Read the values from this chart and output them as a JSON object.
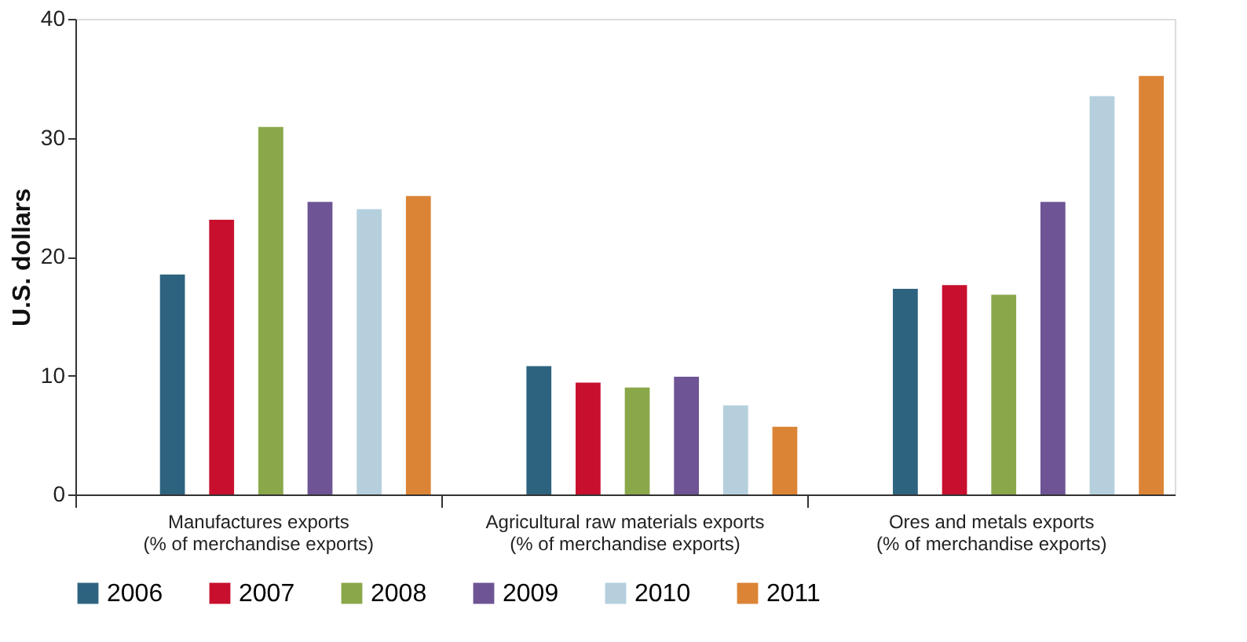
{
  "chart_data": {
    "type": "bar",
    "ylabel": "U.S. dollars",
    "categories": [
      "Manufactures exports\n(% of merchandise exports)",
      "Agricultural raw materials exports\n(% of merchandise exports)",
      "Ores and metals exports\n(% of merchandise exports)"
    ],
    "series": [
      {
        "name": "2006",
        "color": "#2e6380",
        "values": [
          18.5,
          10.8,
          17.3
        ]
      },
      {
        "name": "2007",
        "color": "#c8102e",
        "values": [
          23.1,
          9.4,
          17.6
        ]
      },
      {
        "name": "2008",
        "color": "#8aa84a",
        "values": [
          30.9,
          9.0,
          16.8
        ]
      },
      {
        "name": "2009",
        "color": "#6e5494",
        "values": [
          24.6,
          9.9,
          24.6
        ]
      },
      {
        "name": "2010",
        "color": "#b5cfdd",
        "values": [
          24.0,
          7.5,
          33.5
        ]
      },
      {
        "name": "2011",
        "color": "#dc8436",
        "values": [
          25.1,
          5.7,
          35.2
        ]
      }
    ],
    "ylim": [
      0,
      40
    ],
    "yticks": [
      0,
      10,
      20,
      30,
      40
    ],
    "grid": false,
    "legend": "bottom"
  }
}
